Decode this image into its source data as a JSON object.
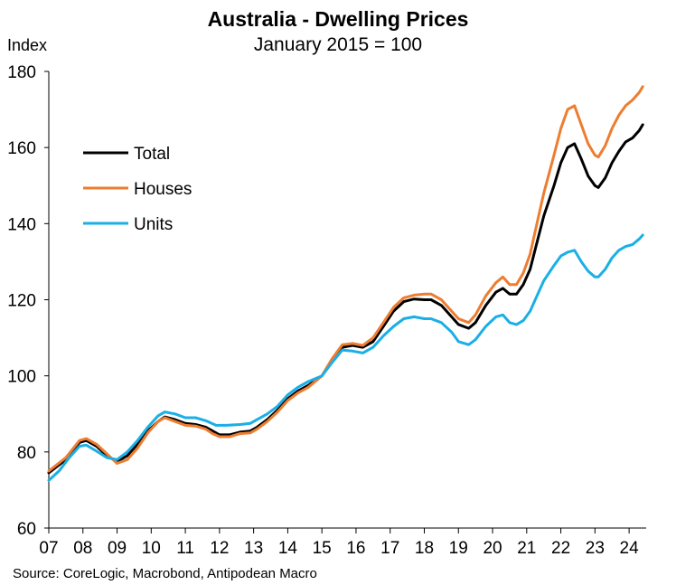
{
  "chart_data": {
    "type": "line",
    "title": "Australia - Dwelling Prices",
    "subtitle": "January 2015 = 100",
    "ylabel": "Index",
    "xlabel": "",
    "source": "Source: CoreLogic, Macrobond, Antipodean Macro",
    "xlim": [
      2007.0,
      2024.5
    ],
    "ylim": [
      60,
      180
    ],
    "y_ticks": [
      60,
      80,
      100,
      120,
      140,
      160,
      180
    ],
    "x_ticks": [
      {
        "value": 2007,
        "label": "07"
      },
      {
        "value": 2008,
        "label": "08"
      },
      {
        "value": 2009,
        "label": "09"
      },
      {
        "value": 2010,
        "label": "10"
      },
      {
        "value": 2011,
        "label": "11"
      },
      {
        "value": 2012,
        "label": "12"
      },
      {
        "value": 2013,
        "label": "13"
      },
      {
        "value": 2014,
        "label": "14"
      },
      {
        "value": 2015,
        "label": "15"
      },
      {
        "value": 2016,
        "label": "16"
      },
      {
        "value": 2017,
        "label": "17"
      },
      {
        "value": 2018,
        "label": "18"
      },
      {
        "value": 2019,
        "label": "19"
      },
      {
        "value": 2020,
        "label": "20"
      },
      {
        "value": 2021,
        "label": "21"
      },
      {
        "value": 2022,
        "label": "22"
      },
      {
        "value": 2023,
        "label": "23"
      },
      {
        "value": 2024,
        "label": "24"
      }
    ],
    "legend_position": "upper-left",
    "series": [
      {
        "name": "Total",
        "color": "#000000",
        "points": [
          [
            2007.0,
            74.5
          ],
          [
            2007.5,
            78
          ],
          [
            2007.9,
            82.5
          ],
          [
            2008.1,
            83
          ],
          [
            2008.4,
            81.5
          ],
          [
            2008.7,
            79
          ],
          [
            2009.0,
            77.5
          ],
          [
            2009.3,
            79
          ],
          [
            2009.6,
            82
          ],
          [
            2009.9,
            85.5
          ],
          [
            2010.2,
            88
          ],
          [
            2010.4,
            89.2
          ],
          [
            2010.7,
            88.5
          ],
          [
            2011.0,
            87.5
          ],
          [
            2011.3,
            87.2
          ],
          [
            2011.6,
            86.5
          ],
          [
            2011.8,
            85.5
          ],
          [
            2012.0,
            84.5
          ],
          [
            2012.3,
            84.5
          ],
          [
            2012.6,
            85.2
          ],
          [
            2012.9,
            85.5
          ],
          [
            2013.1,
            86.5
          ],
          [
            2013.4,
            88.5
          ],
          [
            2013.7,
            91
          ],
          [
            2014.0,
            94
          ],
          [
            2014.3,
            96
          ],
          [
            2014.6,
            97.5
          ],
          [
            2015.0,
            100
          ],
          [
            2015.3,
            104
          ],
          [
            2015.6,
            107.5
          ],
          [
            2015.9,
            108
          ],
          [
            2016.2,
            107.5
          ],
          [
            2016.5,
            109
          ],
          [
            2016.8,
            113
          ],
          [
            2017.1,
            117
          ],
          [
            2017.4,
            119.5
          ],
          [
            2017.7,
            120.2
          ],
          [
            2018.0,
            120
          ],
          [
            2018.2,
            120
          ],
          [
            2018.5,
            118.5
          ],
          [
            2018.8,
            115.5
          ],
          [
            2019.0,
            113.5
          ],
          [
            2019.3,
            112.5
          ],
          [
            2019.5,
            114
          ],
          [
            2019.8,
            118.5
          ],
          [
            2020.1,
            122
          ],
          [
            2020.3,
            123
          ],
          [
            2020.5,
            121.5
          ],
          [
            2020.7,
            121.5
          ],
          [
            2020.9,
            124
          ],
          [
            2021.1,
            128
          ],
          [
            2021.3,
            135
          ],
          [
            2021.5,
            142
          ],
          [
            2021.8,
            150
          ],
          [
            2022.0,
            156
          ],
          [
            2022.2,
            160
          ],
          [
            2022.4,
            161
          ],
          [
            2022.6,
            157
          ],
          [
            2022.8,
            152.5
          ],
          [
            2023.0,
            150
          ],
          [
            2023.1,
            149.5
          ],
          [
            2023.3,
            152
          ],
          [
            2023.5,
            156
          ],
          [
            2023.7,
            159
          ],
          [
            2023.9,
            161.5
          ],
          [
            2024.1,
            162.5
          ],
          [
            2024.3,
            164.5
          ],
          [
            2024.4,
            166
          ]
        ]
      },
      {
        "name": "Houses",
        "color": "#ED7D31",
        "points": [
          [
            2007.0,
            75
          ],
          [
            2007.5,
            78.5
          ],
          [
            2007.9,
            83
          ],
          [
            2008.1,
            83.5
          ],
          [
            2008.4,
            82
          ],
          [
            2008.7,
            79.5
          ],
          [
            2009.0,
            77
          ],
          [
            2009.3,
            78
          ],
          [
            2009.6,
            81
          ],
          [
            2009.9,
            85
          ],
          [
            2010.2,
            88
          ],
          [
            2010.4,
            89
          ],
          [
            2010.7,
            88
          ],
          [
            2011.0,
            87
          ],
          [
            2011.3,
            86.8
          ],
          [
            2011.6,
            86
          ],
          [
            2011.8,
            84.8
          ],
          [
            2012.0,
            84
          ],
          [
            2012.3,
            84
          ],
          [
            2012.6,
            84.8
          ],
          [
            2012.9,
            85
          ],
          [
            2013.1,
            86
          ],
          [
            2013.4,
            88
          ],
          [
            2013.7,
            90.5
          ],
          [
            2014.0,
            93.5
          ],
          [
            2014.3,
            95.5
          ],
          [
            2014.6,
            97
          ],
          [
            2015.0,
            100
          ],
          [
            2015.3,
            104.5
          ],
          [
            2015.6,
            108.2
          ],
          [
            2015.9,
            108.5
          ],
          [
            2016.2,
            108
          ],
          [
            2016.5,
            110
          ],
          [
            2016.8,
            114
          ],
          [
            2017.1,
            118
          ],
          [
            2017.4,
            120.5
          ],
          [
            2017.7,
            121.2
          ],
          [
            2018.0,
            121.5
          ],
          [
            2018.2,
            121.5
          ],
          [
            2018.5,
            120
          ],
          [
            2018.8,
            117
          ],
          [
            2019.0,
            115
          ],
          [
            2019.3,
            114
          ],
          [
            2019.5,
            116
          ],
          [
            2019.8,
            121
          ],
          [
            2020.1,
            124.5
          ],
          [
            2020.3,
            126
          ],
          [
            2020.5,
            124
          ],
          [
            2020.7,
            124
          ],
          [
            2020.9,
            127
          ],
          [
            2021.1,
            132
          ],
          [
            2021.3,
            140
          ],
          [
            2021.5,
            148
          ],
          [
            2021.8,
            158
          ],
          [
            2022.0,
            165
          ],
          [
            2022.2,
            170
          ],
          [
            2022.4,
            171
          ],
          [
            2022.6,
            166
          ],
          [
            2022.8,
            161
          ],
          [
            2023.0,
            158
          ],
          [
            2023.1,
            157.5
          ],
          [
            2023.3,
            160.5
          ],
          [
            2023.5,
            165
          ],
          [
            2023.7,
            168.5
          ],
          [
            2023.9,
            171
          ],
          [
            2024.1,
            172.5
          ],
          [
            2024.3,
            174.5
          ],
          [
            2024.4,
            176
          ]
        ]
      },
      {
        "name": "Units",
        "color": "#1AAFE6",
        "points": [
          [
            2007.0,
            72.5
          ],
          [
            2007.3,
            75
          ],
          [
            2007.6,
            78.5
          ],
          [
            2007.9,
            81.5
          ],
          [
            2008.1,
            81.8
          ],
          [
            2008.4,
            80.2
          ],
          [
            2008.7,
            78.5
          ],
          [
            2009.0,
            78
          ],
          [
            2009.3,
            80
          ],
          [
            2009.6,
            83
          ],
          [
            2009.9,
            86.5
          ],
          [
            2010.2,
            89.5
          ],
          [
            2010.4,
            90.5
          ],
          [
            2010.7,
            90
          ],
          [
            2011.0,
            89
          ],
          [
            2011.3,
            89
          ],
          [
            2011.6,
            88.2
          ],
          [
            2011.9,
            87
          ],
          [
            2012.2,
            87
          ],
          [
            2012.6,
            87.2
          ],
          [
            2012.9,
            87.5
          ],
          [
            2013.1,
            88.5
          ],
          [
            2013.4,
            90
          ],
          [
            2013.7,
            92
          ],
          [
            2014.0,
            95
          ],
          [
            2014.3,
            97
          ],
          [
            2014.6,
            98.5
          ],
          [
            2015.0,
            100
          ],
          [
            2015.3,
            103.5
          ],
          [
            2015.6,
            106.8
          ],
          [
            2015.9,
            106.5
          ],
          [
            2016.2,
            106
          ],
          [
            2016.5,
            107.5
          ],
          [
            2016.8,
            110.5
          ],
          [
            2017.1,
            113
          ],
          [
            2017.4,
            115
          ],
          [
            2017.7,
            115.5
          ],
          [
            2018.0,
            115
          ],
          [
            2018.2,
            115
          ],
          [
            2018.5,
            114
          ],
          [
            2018.8,
            111.5
          ],
          [
            2019.0,
            109
          ],
          [
            2019.3,
            108.2
          ],
          [
            2019.5,
            109.5
          ],
          [
            2019.8,
            113
          ],
          [
            2020.1,
            115.5
          ],
          [
            2020.3,
            116
          ],
          [
            2020.5,
            114
          ],
          [
            2020.7,
            113.5
          ],
          [
            2020.9,
            114.5
          ],
          [
            2021.1,
            117
          ],
          [
            2021.3,
            121
          ],
          [
            2021.5,
            125
          ],
          [
            2021.8,
            129
          ],
          [
            2022.0,
            131.5
          ],
          [
            2022.2,
            132.5
          ],
          [
            2022.4,
            133
          ],
          [
            2022.6,
            130
          ],
          [
            2022.8,
            127.5
          ],
          [
            2023.0,
            126
          ],
          [
            2023.1,
            126
          ],
          [
            2023.3,
            128
          ],
          [
            2023.5,
            131
          ],
          [
            2023.7,
            133
          ],
          [
            2023.9,
            134
          ],
          [
            2024.1,
            134.5
          ],
          [
            2024.3,
            136
          ],
          [
            2024.4,
            137
          ]
        ]
      }
    ]
  }
}
